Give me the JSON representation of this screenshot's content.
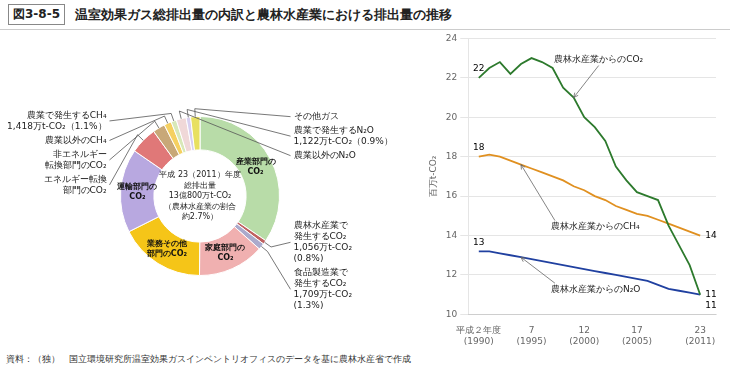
{
  "chart_data": [
    {
      "type": "doughnut",
      "title": "温室効果ガス総排出量の内訳と農林水産業における排出量の推移",
      "subtitle": "図3-8-5",
      "source": "資料：（独）　国立環境研究所温室効果ガスインベントリオフィスのデータを基に農林水産省で作成",
      "categories": [
        "産業部門の\nCO₂",
        "農林水産業で\n発生するCO₂\n1,056万t-CO₂\n(0.8%)",
        "食品製造業で\n発生するCO₂\n1,709万t-CO₂\n(1.3%)",
        "家庭部門の\nCO₂",
        "業務その他\n部門のCO₂",
        "運輸部門の\nCO₂",
        "エネルギー転換\n部門のCO₂",
        "非エネルギー\n転換部門のCO₂",
        "農業以外のCH₄",
        "農業で発生するCH₄\n1,418万t-CO₂（1.1%）",
        "農業以外のN₂O",
        "農業で発生するN₂O\n1,122万t-CO₂（0.9%）",
        "その他ガス"
      ],
      "values": [
        34.5,
        0.8,
        1.3,
        13.5,
        17.5,
        17.0,
        5.5,
        2.5,
        1.5,
        1.1,
        2.0,
        0.9,
        1.9
      ],
      "colors": [
        "#b8dca8",
        "#c06060",
        "#aaaacc",
        "#f0b0b0",
        "#f5c518",
        "#b8a8e0",
        "#e07878",
        "#c8a878",
        "#f5d060",
        "#d8e8b8",
        "#f0d8d8",
        "#d8d0f0",
        "#e8e060"
      ],
      "annotations": [
        "平成 23（2011）年度",
        "総排出量",
        "13億800万t-CO₂",
        "（農林水産業の割合",
        "約2.7%）"
      ]
    },
    {
      "type": "line",
      "x": [
        1990,
        1991,
        1992,
        1993,
        1994,
        1995,
        1996,
        1997,
        1998,
        1999,
        2000,
        2001,
        2002,
        2003,
        2004,
        2005,
        2006,
        2007,
        2008,
        2009,
        2010,
        2011
      ],
      "series": [
        {
          "name": "農林水産業からのCO₂",
          "color": "#2d7a2d",
          "values": [
            22.0,
            22.5,
            22.8,
            22.2,
            22.7,
            23.0,
            22.8,
            22.5,
            21.5,
            21.0,
            20.0,
            19.5,
            18.8,
            17.5,
            16.8,
            16.2,
            16.0,
            15.8,
            14.5,
            13.5,
            12.5,
            11.0
          ],
          "value_labels": [
            "22",
            null,
            null,
            null,
            null,
            null,
            null,
            null,
            null,
            null,
            null,
            null,
            null,
            null,
            null,
            null,
            null,
            null,
            null,
            null,
            null,
            "11"
          ]
        },
        {
          "name": "農林水産業からのCH₄",
          "color": "#e09020",
          "values": [
            18.0,
            18.1,
            18.0,
            17.8,
            17.6,
            17.4,
            17.2,
            17.0,
            16.8,
            16.5,
            16.3,
            16.0,
            15.8,
            15.5,
            15.3,
            15.1,
            15.0,
            14.8,
            14.6,
            14.4,
            14.2,
            14.0
          ],
          "value_labels": [
            "18",
            null,
            null,
            null,
            null,
            null,
            null,
            null,
            null,
            null,
            null,
            null,
            null,
            null,
            null,
            null,
            null,
            null,
            null,
            null,
            null,
            "14"
          ]
        },
        {
          "name": "農林水産業からのN₂O",
          "color": "#2040a0",
          "values": [
            13.2,
            13.2,
            13.1,
            13.0,
            12.9,
            12.8,
            12.7,
            12.6,
            12.5,
            12.4,
            12.3,
            12.2,
            12.1,
            12.0,
            11.9,
            11.8,
            11.7,
            11.5,
            11.3,
            11.2,
            11.1,
            11.0
          ],
          "value_labels": [
            "13",
            null,
            null,
            null,
            null,
            null,
            null,
            null,
            null,
            null,
            null,
            null,
            null,
            null,
            null,
            null,
            null,
            null,
            null,
            null,
            null,
            "11"
          ]
        }
      ],
      "xlim": [
        1989.0,
        2012.5
      ],
      "xticks": [
        {
          "value": 1990,
          "label": "平成２年度\n(1990)"
        },
        {
          "value": 1995,
          "label": "7\n(1995)"
        },
        {
          "value": 2000,
          "label": "12\n(2000)"
        },
        {
          "value": 2005,
          "label": "17\n(2005)"
        },
        {
          "value": 2011,
          "label": "23\n(2011)"
        }
      ],
      "ylim": [
        10,
        24
      ],
      "yticks": [
        10,
        12,
        14,
        16,
        18,
        20,
        22,
        24
      ],
      "ylabel": "百万t-CO₂",
      "grid": "y"
    }
  ]
}
